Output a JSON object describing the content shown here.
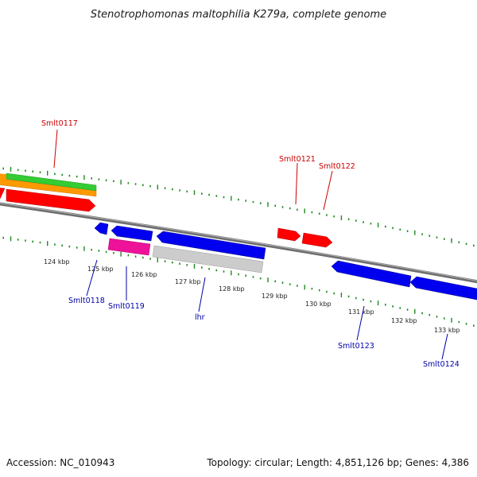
{
  "title": "Stenotrophomonas maltophilia K279a, complete genome",
  "footer": {
    "accession": "Accession: NC_010943",
    "summary": "Topology: circular; Length: 4,851,126 bp; Genes: 4,386"
  },
  "colors": {
    "backbone": "#888888",
    "tick": "#1f8a1f",
    "forward_label": "#cc0000",
    "reverse_label": "#0000aa",
    "red": "#ff0000",
    "blue": "#0000ee",
    "orange": "#ff9900",
    "green": "#33cc33",
    "magenta": "#ee1199",
    "gray": "#c8c8c8"
  },
  "kbp_labels": [
    "124 kbp",
    "125 kbp",
    "126 kbp",
    "127 kbp",
    "128 kbp",
    "129 kbp",
    "130 kbp",
    "131 kbp",
    "132 kbp",
    "133 kbp"
  ],
  "genes_forward": [
    {
      "name": "Smlt0117"
    },
    {
      "name": "Smlt0121"
    },
    {
      "name": "Smlt0122"
    }
  ],
  "genes_reverse": [
    {
      "name": "Smlt0118"
    },
    {
      "name": "Smlt0119"
    },
    {
      "name": "lhr"
    },
    {
      "name": "Smlt0123"
    },
    {
      "name": "Smlt0124"
    }
  ]
}
